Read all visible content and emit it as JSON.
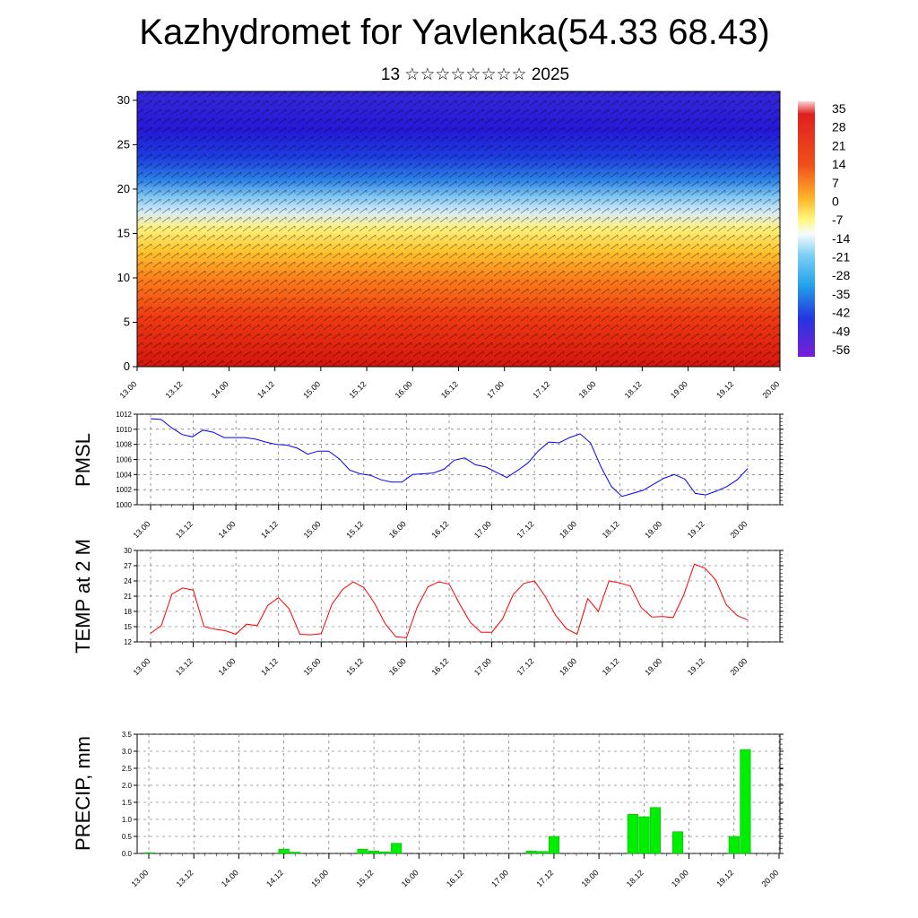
{
  "title": "Kazhydromet for Yavlenka(54.33 68.43)",
  "subtitle": "13 ☆☆☆☆☆☆☆☆ 2025",
  "chart_data": [
    {
      "type": "heatmap",
      "name": "cross-section",
      "x_labels": [
        "13.00",
        "13.12",
        "14.00",
        "14.12",
        "15.00",
        "15.12",
        "16.00",
        "16.12",
        "17.00",
        "17.12",
        "18.00",
        "18.12",
        "19.00",
        "19.12",
        "20.00"
      ],
      "y_ticks": [
        0,
        5,
        10,
        15,
        20,
        25,
        30
      ],
      "ylim": [
        0,
        31
      ],
      "colorbar_labels": [
        "35",
        "28",
        "21",
        "14",
        "7",
        "0",
        "-7",
        "-14",
        "-21",
        "-28",
        "-35",
        "-42",
        "-49",
        "-56"
      ],
      "colorbar_range": [
        -63,
        42
      ],
      "description_levels": "temperature decreasing with level; warm red near 0, yellow near 15, blue above 20",
      "colors": {
        "warm": "#d81a0f",
        "mid": "#ffeb3b",
        "cold": "#2a1ee0"
      }
    },
    {
      "type": "line",
      "ylabel": "PMSL",
      "x_labels": [
        "13.00",
        "13.12",
        "14.00",
        "14.12",
        "15.00",
        "15.12",
        "16.00",
        "16.12",
        "17.00",
        "17.12",
        "18.00",
        "18.12",
        "19.00",
        "19.12",
        "20.00"
      ],
      "y_ticks": [
        1000,
        1002,
        1004,
        1006,
        1008,
        1010,
        1012
      ],
      "ylim": [
        1000,
        1012
      ],
      "color": "#0000ff",
      "values": [
        1011.4,
        1011.3,
        1010.2,
        1009.3,
        1009.0,
        1009.9,
        1009.6,
        1008.9,
        1008.9,
        1008.9,
        1008.7,
        1008.3,
        1008.0,
        1007.9,
        1007.5,
        1006.7,
        1007.1,
        1007.1,
        1006.1,
        1004.6,
        1004.1,
        1003.9,
        1003.3,
        1003.0,
        1003.0,
        1004.0,
        1004.1,
        1004.2,
        1004.7,
        1005.9,
        1006.2,
        1005.3,
        1005.0,
        1004.3,
        1003.6,
        1004.5,
        1005.5,
        1007.1,
        1008.3,
        1008.2,
        1008.9,
        1009.4,
        1008.2,
        1005.0,
        1002.4,
        1001.1,
        1001.5,
        1001.9,
        1002.7,
        1003.5,
        1004.0,
        1003.4,
        1001.5,
        1001.3,
        1001.8,
        1002.4,
        1003.3,
        1004.8
      ]
    },
    {
      "type": "line",
      "ylabel": "TEMP at 2 M",
      "x_labels": [
        "13.00",
        "13.12",
        "14.00",
        "14.12",
        "15.00",
        "15.12",
        "16.00",
        "16.12",
        "17.00",
        "17.12",
        "18.00",
        "18.12",
        "19.00",
        "19.12",
        "20.00"
      ],
      "y_ticks": [
        12,
        15,
        18,
        21,
        24,
        27,
        30
      ],
      "ylim": [
        12,
        30
      ],
      "color": "#ff0000",
      "values": [
        13.7,
        15.2,
        21.4,
        22.6,
        22.2,
        15.0,
        14.5,
        14.2,
        13.5,
        15.5,
        15.2,
        19.2,
        20.7,
        18.5,
        13.5,
        13.4,
        13.6,
        19.4,
        22.3,
        23.8,
        22.7,
        19.6,
        15.6,
        13.0,
        12.8,
        18.8,
        22.8,
        23.8,
        23.4,
        19.4,
        15.8,
        13.9,
        13.9,
        16.5,
        21.3,
        23.5,
        24.0,
        21.0,
        17.2,
        14.6,
        13.5,
        20.5,
        18.0,
        24.0,
        23.6,
        23.0,
        18.8,
        16.9,
        17.0,
        16.8,
        21.2,
        27.3,
        26.5,
        24.2,
        19.3,
        17.2,
        16.3
      ]
    },
    {
      "type": "bar",
      "ylabel": "PRECIP, mm",
      "x_labels": [
        "13.00",
        "13.12",
        "14.00",
        "14.12",
        "15.00",
        "15.12",
        "16.00",
        "16.12",
        "17.00",
        "17.12",
        "18.00",
        "18.12",
        "19.00",
        "19.12",
        "20.00"
      ],
      "y_ticks": [
        "0.0",
        "0.5",
        "1.0",
        "1.5",
        "2.0",
        "2.5",
        "3.0",
        "3.5"
      ],
      "ylim": [
        0,
        3.5
      ],
      "color": "#00ee00",
      "values": [
        0.02,
        0,
        0,
        0,
        0,
        0,
        0,
        0,
        0,
        0,
        0,
        0,
        0.13,
        0.04,
        0,
        0,
        0,
        0,
        0,
        0.13,
        0.07,
        0.05,
        0.3,
        0,
        0,
        0,
        0,
        0,
        0,
        0,
        0,
        0,
        0,
        0,
        0.07,
        0.06,
        0.5,
        0,
        0,
        0,
        0,
        0,
        0,
        1.15,
        1.08,
        1.35,
        0,
        0.64,
        0,
        0,
        0,
        0,
        0.5,
        3.05,
        0,
        0,
        0
      ]
    }
  ]
}
